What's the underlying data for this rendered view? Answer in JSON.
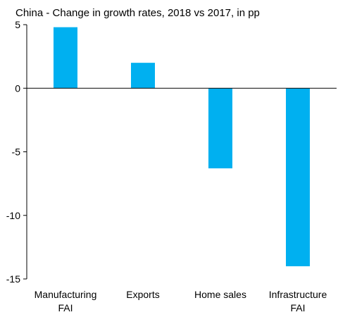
{
  "chart_data": {
    "type": "bar",
    "title": "China - Change in growth rates, 2018 vs 2017, in pp",
    "categories": [
      [
        "Manufacturing",
        "FAI"
      ],
      [
        "Exports"
      ],
      [
        "Home sales"
      ],
      [
        "Infrastructure",
        "FAI"
      ]
    ],
    "values": [
      4.8,
      2.0,
      -6.3,
      -14.0
    ],
    "ylim": [
      -15,
      5
    ],
    "yticks": [
      "5",
      "0",
      "-5",
      "-10",
      "-15"
    ],
    "xlabel": "",
    "ylabel": "",
    "grid": false,
    "bar_color": "#00B0F0"
  }
}
